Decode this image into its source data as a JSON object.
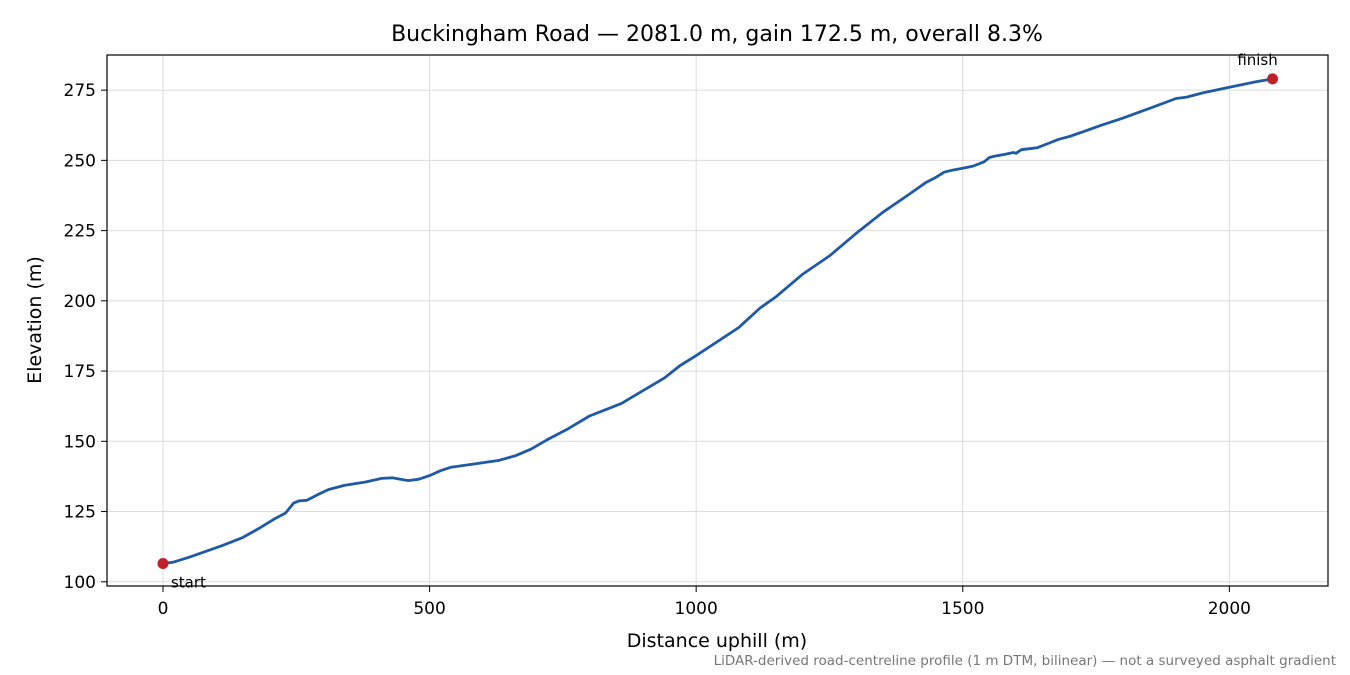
{
  "chart_data": {
    "type": "line",
    "title": "Buckingham Road — 2081.0 m, gain 172.5 m, overall 8.3%",
    "xlabel": "Distance uphill (m)",
    "ylabel": "Elevation (m)",
    "xlim": [
      -105,
      2185
    ],
    "ylim": [
      98.5,
      287.5
    ],
    "xticks": [
      0,
      500,
      1000,
      1500,
      2000
    ],
    "yticks": [
      100,
      125,
      150,
      175,
      200,
      225,
      250,
      275
    ],
    "grid": true,
    "series": [
      {
        "color": "#1f5aa6",
        "x": [
          0,
          20,
          50,
          80,
          110,
          150,
          180,
          210,
          230,
          245,
          255,
          270,
          290,
          310,
          340,
          380,
          410,
          430,
          445,
          460,
          480,
          500,
          520,
          540,
          580,
          630,
          660,
          690,
          720,
          760,
          800,
          820,
          860,
          900,
          940,
          970,
          1000,
          1040,
          1080,
          1100,
          1120,
          1150,
          1200,
          1250,
          1300,
          1350,
          1400,
          1430,
          1450,
          1465,
          1480,
          1500,
          1520,
          1540,
          1550,
          1560,
          1580,
          1595,
          1600,
          1605,
          1610,
          1640,
          1660,
          1680,
          1700,
          1730,
          1760,
          1800,
          1850,
          1900,
          1920,
          1950,
          2000,
          2050,
          2081
        ],
        "y": [
          106.5,
          107,
          108.8,
          110.8,
          112.8,
          115.8,
          119,
          122.5,
          124.5,
          128,
          128.8,
          129,
          131,
          132.8,
          134.3,
          135.5,
          136.8,
          137,
          136.5,
          136,
          136.5,
          137.8,
          139.5,
          140.8,
          141.8,
          143.2,
          144.8,
          147.2,
          150.5,
          154.5,
          159,
          160.5,
          163.5,
          168,
          172.5,
          177,
          180.5,
          185.5,
          190.5,
          194,
          197.5,
          201.5,
          209.5,
          216,
          224,
          231.5,
          238,
          242,
          244,
          245.8,
          246.5,
          247.2,
          248,
          249.5,
          251,
          251.5,
          252.2,
          252.8,
          252.5,
          253.2,
          253.8,
          254.5,
          256,
          257.5,
          258.5,
          260.5,
          262.5,
          265,
          268.5,
          272,
          272.5,
          274,
          276,
          278,
          279
        ]
      }
    ],
    "points": [
      {
        "x": 0,
        "y": 106.5,
        "label": "start",
        "color": "#c0202a"
      },
      {
        "x": 2081,
        "y": 279,
        "label": "finish",
        "color": "#c0202a"
      }
    ],
    "footnote": "LiDAR-derived road-centreline profile (1 m DTM, bilinear) — not a surveyed asphalt gradient"
  }
}
